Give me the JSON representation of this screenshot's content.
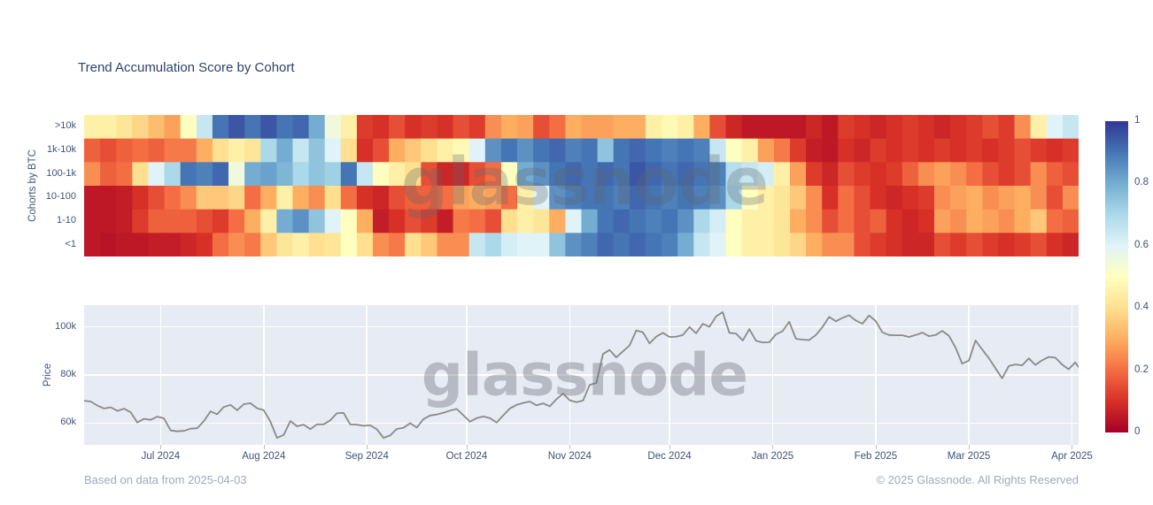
{
  "page": {
    "title": "Trend Accumulation Score by Cohort",
    "watermark": "glassnode",
    "footer_left": "Based on data from 2025-04-03",
    "footer_right": "© 2025 Glassnode. All Rights Reserved"
  },
  "colors": {
    "title_text": "#2d4368",
    "tick_text": "#3f5276",
    "muted_text": "#9fa9bd",
    "price_line": "#8a8a8a",
    "plot_bg": "#e7ebf4",
    "grid": "#ffffff"
  },
  "chart_data": [
    {
      "type": "heatmap",
      "ylabel": "Cohorts by BTC",
      "x_range": [
        "2024-06-08",
        "2025-04-03"
      ],
      "days_total": 299,
      "columns": 62,
      "column_span_days": 5,
      "zmin": 0,
      "zmax": 1,
      "colorscale_name": "RdYlBu",
      "colorscale_stops": [
        "#a50026",
        "#d73027",
        "#f46d43",
        "#fdae61",
        "#fee090",
        "#ffffbf",
        "#e0f3f8",
        "#abd9e9",
        "#74add1",
        "#4575b4",
        "#313695"
      ],
      "colorbar_ticks": [
        "1",
        "0.8",
        "0.6",
        "0.4",
        "0.2",
        "0"
      ],
      "series": [
        {
          "name": ">10k",
          "values": [
            0.45,
            0.45,
            0.42,
            0.38,
            0.33,
            0.28,
            0.5,
            0.65,
            0.9,
            0.95,
            0.9,
            0.95,
            0.9,
            0.92,
            0.8,
            0.55,
            0.45,
            0.12,
            0.1,
            0.15,
            0.1,
            0.12,
            0.1,
            0.15,
            0.12,
            0.25,
            0.3,
            0.28,
            0.15,
            0.2,
            0.3,
            0.28,
            0.28,
            0.3,
            0.3,
            0.45,
            0.48,
            0.45,
            0.3,
            0.15,
            0.08,
            0.05,
            0.05,
            0.05,
            0.05,
            0.08,
            0.05,
            0.12,
            0.1,
            0.08,
            0.1,
            0.12,
            0.1,
            0.08,
            0.1,
            0.12,
            0.15,
            0.12,
            0.25,
            0.45,
            0.6,
            0.65
          ]
        },
        {
          "name": "1k-10k",
          "values": [
            0.18,
            0.15,
            0.18,
            0.2,
            0.18,
            0.22,
            0.22,
            0.3,
            0.4,
            0.45,
            0.42,
            0.7,
            0.8,
            0.65,
            0.75,
            0.6,
            0.4,
            0.1,
            0.15,
            0.3,
            0.35,
            0.4,
            0.45,
            0.48,
            0.6,
            0.85,
            0.9,
            0.85,
            0.9,
            0.92,
            0.88,
            0.9,
            0.75,
            0.9,
            0.92,
            0.9,
            0.88,
            0.9,
            0.88,
            0.65,
            0.5,
            0.45,
            0.28,
            0.22,
            0.12,
            0.06,
            0.05,
            0.1,
            0.08,
            0.12,
            0.1,
            0.12,
            0.1,
            0.12,
            0.1,
            0.12,
            0.1,
            0.12,
            0.15,
            0.12,
            0.1,
            0.12
          ]
        },
        {
          "name": "100-1k",
          "values": [
            0.25,
            0.18,
            0.2,
            0.4,
            0.6,
            0.7,
            0.9,
            0.88,
            0.92,
            0.55,
            0.8,
            0.82,
            0.78,
            0.7,
            0.75,
            0.72,
            0.9,
            0.65,
            0.5,
            0.45,
            0.4,
            0.15,
            0.08,
            0.08,
            0.15,
            0.2,
            0.5,
            0.8,
            0.85,
            0.9,
            0.92,
            0.9,
            0.92,
            0.9,
            0.95,
            0.92,
            0.9,
            0.92,
            0.9,
            0.88,
            0.68,
            0.65,
            0.62,
            0.45,
            0.28,
            0.12,
            0.08,
            0.15,
            0.12,
            0.1,
            0.12,
            0.18,
            0.25,
            0.28,
            0.25,
            0.2,
            0.15,
            0.12,
            0.15,
            0.25,
            0.18,
            0.15
          ]
        },
        {
          "name": "10-100",
          "values": [
            0.05,
            0.05,
            0.06,
            0.1,
            0.15,
            0.2,
            0.25,
            0.35,
            0.35,
            0.38,
            0.2,
            0.3,
            0.45,
            0.3,
            0.25,
            0.4,
            0.2,
            0.1,
            0.08,
            0.15,
            0.18,
            0.18,
            0.2,
            0.28,
            0.3,
            0.28,
            0.2,
            0.45,
            0.6,
            0.85,
            0.88,
            0.9,
            0.9,
            0.88,
            0.92,
            0.9,
            0.88,
            0.9,
            0.88,
            0.85,
            0.7,
            0.5,
            0.45,
            0.42,
            0.35,
            0.25,
            0.1,
            0.2,
            0.15,
            0.1,
            0.08,
            0.1,
            0.12,
            0.25,
            0.28,
            0.3,
            0.25,
            0.28,
            0.3,
            0.25,
            0.15,
            0.25
          ]
        },
        {
          "name": "1-10",
          "values": [
            0.05,
            0.05,
            0.06,
            0.12,
            0.18,
            0.18,
            0.18,
            0.15,
            0.12,
            0.2,
            0.3,
            0.45,
            0.8,
            0.85,
            0.75,
            0.6,
            0.5,
            0.3,
            0.06,
            0.1,
            0.15,
            0.12,
            0.06,
            0.22,
            0.2,
            0.15,
            0.4,
            0.45,
            0.42,
            0.3,
            0.6,
            0.8,
            0.9,
            0.92,
            0.9,
            0.88,
            0.9,
            0.85,
            0.7,
            0.62,
            0.5,
            0.45,
            0.45,
            0.42,
            0.3,
            0.25,
            0.15,
            0.2,
            0.15,
            0.18,
            0.1,
            0.08,
            0.1,
            0.28,
            0.25,
            0.3,
            0.28,
            0.25,
            0.3,
            0.35,
            0.2,
            0.18
          ]
        },
        {
          "name": "<1",
          "values": [
            0.05,
            0.04,
            0.05,
            0.05,
            0.06,
            0.06,
            0.08,
            0.1,
            0.2,
            0.25,
            0.22,
            0.35,
            0.42,
            0.45,
            0.4,
            0.42,
            0.5,
            0.4,
            0.25,
            0.22,
            0.4,
            0.35,
            0.25,
            0.25,
            0.65,
            0.7,
            0.62,
            0.6,
            0.6,
            0.75,
            0.85,
            0.88,
            0.92,
            0.9,
            0.92,
            0.9,
            0.88,
            0.8,
            0.65,
            0.6,
            0.5,
            0.45,
            0.45,
            0.42,
            0.38,
            0.3,
            0.25,
            0.25,
            0.15,
            0.12,
            0.1,
            0.08,
            0.08,
            0.15,
            0.12,
            0.15,
            0.12,
            0.1,
            0.12,
            0.15,
            0.1,
            0.08
          ]
        }
      ]
    },
    {
      "type": "line",
      "ylabel": "Price",
      "ylim": [
        51,
        109
      ],
      "yticks": [
        {
          "label": "100k",
          "value": 100
        },
        {
          "label": "80k",
          "value": 80
        },
        {
          "label": "60k",
          "value": 60
        }
      ],
      "days_total": 299,
      "x_months": [
        {
          "label": "Jul 2024",
          "day": 23
        },
        {
          "label": "Aug 2024",
          "day": 54
        },
        {
          "label": "Sep 2024",
          "day": 85
        },
        {
          "label": "Oct 2024",
          "day": 115
        },
        {
          "label": "Nov 2024",
          "day": 146
        },
        {
          "label": "Dec 2024",
          "day": 176
        },
        {
          "label": "Jan 2025",
          "day": 207
        },
        {
          "label": "Feb 2025",
          "day": 238
        },
        {
          "label": "Mar 2025",
          "day": 266
        },
        {
          "label": "Apr 2025",
          "day": 297
        }
      ],
      "x_days": [
        0,
        2,
        4,
        6,
        8,
        10,
        12,
        14,
        16,
        18,
        20,
        22,
        24,
        26,
        28,
        30,
        32,
        34,
        36,
        38,
        40,
        42,
        44,
        46,
        48,
        50,
        52,
        54,
        56,
        58,
        60,
        62,
        64,
        66,
        68,
        70,
        72,
        74,
        76,
        78,
        80,
        82,
        84,
        86,
        88,
        90,
        92,
        94,
        96,
        98,
        100,
        102,
        104,
        106,
        108,
        110,
        112,
        114,
        116,
        118,
        120,
        122,
        124,
        126,
        128,
        130,
        132,
        134,
        136,
        138,
        140,
        142,
        144,
        146,
        148,
        150,
        152,
        154,
        156,
        158,
        160,
        162,
        164,
        166,
        168,
        170,
        172,
        174,
        176,
        178,
        180,
        182,
        184,
        186,
        188,
        190,
        192,
        194,
        196,
        198,
        200,
        202,
        204,
        206,
        208,
        210,
        212,
        214,
        216,
        218,
        220,
        222,
        224,
        226,
        228,
        230,
        232,
        234,
        236,
        238,
        240,
        242,
        244,
        246,
        248,
        250,
        252,
        254,
        256,
        258,
        260,
        262,
        264,
        266,
        268,
        270,
        272,
        274,
        276,
        278,
        280,
        282,
        284,
        286,
        288,
        290,
        292,
        294,
        296,
        298,
        299
      ],
      "values_k": [
        69.3,
        69.0,
        67.3,
        66.1,
        66.6,
        65.1,
        66.0,
        64.5,
        60.3,
        61.8,
        61.4,
        62.7,
        62.0,
        57.0,
        56.6,
        56.8,
        57.7,
        57.9,
        60.8,
        64.9,
        63.7,
        66.7,
        67.6,
        65.4,
        67.9,
        68.3,
        66.2,
        65.4,
        60.7,
        53.9,
        55.1,
        60.9,
        58.7,
        59.4,
        57.5,
        59.5,
        59.5,
        61.2,
        64.1,
        64.3,
        59.5,
        59.4,
        58.9,
        59.1,
        57.5,
        53.9,
        54.9,
        57.6,
        58.1,
        60.0,
        58.2,
        61.7,
        63.2,
        63.6,
        64.3,
        65.2,
        65.9,
        63.3,
        60.6,
        62.1,
        62.8,
        62.1,
        60.3,
        63.2,
        66.1,
        67.6,
        68.4,
        69.0,
        67.4,
        68.2,
        67.0,
        69.9,
        72.3,
        69.5,
        68.7,
        69.4,
        75.9,
        76.7,
        88.7,
        90.4,
        87.3,
        89.8,
        92.3,
        98.5,
        97.7,
        93.1,
        95.9,
        97.5,
        95.8,
        95.9,
        96.6,
        99.9,
        97.3,
        101.2,
        100.0,
        104.3,
        106.1,
        97.5,
        97.2,
        94.3,
        99.0,
        94.2,
        93.5,
        93.6,
        96.9,
        98.2,
        102.1,
        95.0,
        94.7,
        94.5,
        96.6,
        99.9,
        104.1,
        102.3,
        103.7,
        104.8,
        102.6,
        101.3,
        104.7,
        102.4,
        97.7,
        96.6,
        96.5,
        96.5,
        95.8,
        96.6,
        97.6,
        96.1,
        96.6,
        98.3,
        96.3,
        91.4,
        84.7,
        86.0,
        94.3,
        90.6,
        87.0,
        82.8,
        78.6,
        83.7,
        84.4,
        84.0,
        86.9,
        84.2,
        86.1,
        87.5,
        87.2,
        84.4,
        82.4,
        85.2,
        83.2
      ]
    }
  ]
}
